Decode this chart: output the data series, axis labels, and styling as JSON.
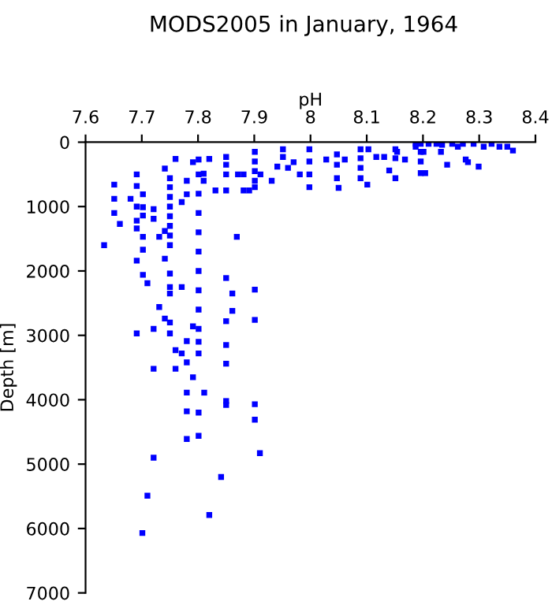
{
  "chart_data": {
    "type": "scatter",
    "title": "MODS2005 in January, 1964",
    "xlabel": "pH",
    "ylabel": "Depth [m]",
    "xlim": [
      7.6,
      8.4
    ],
    "xticks": [
      7.6,
      7.7,
      7.8,
      7.9,
      8,
      8.1,
      8.2,
      8.3,
      8.4
    ],
    "ylim": [
      7000,
      0
    ],
    "yticks": [
      0,
      1000,
      2000,
      3000,
      4000,
      5000,
      6000,
      7000
    ],
    "grid": false,
    "marker": "square",
    "series": [
      {
        "color": "#0000ff",
        "x": [
          7.633,
          7.651,
          7.651,
          7.651,
          7.661,
          7.68,
          7.691,
          7.691,
          7.691,
          7.691,
          7.691,
          7.691,
          7.691,
          7.702,
          7.702,
          7.702,
          7.702,
          7.702,
          7.702,
          7.71,
          7.721,
          7.721,
          7.721,
          7.721,
          7.731,
          7.731,
          7.741,
          7.741,
          7.741,
          7.741,
          7.75,
          7.75,
          7.75,
          7.75,
          7.75,
          7.75,
          7.75,
          7.75,
          7.75,
          7.75,
          7.75,
          7.75,
          7.75,
          7.76,
          7.76,
          7.76,
          7.771,
          7.771,
          7.771,
          7.78,
          7.78,
          7.78,
          7.78,
          7.791,
          7.791,
          7.791,
          7.801,
          7.801,
          7.801,
          7.801,
          7.801,
          7.801,
          7.801,
          7.801,
          7.801,
          7.801,
          7.801,
          7.801,
          7.81,
          7.81,
          7.82,
          7.831,
          7.85,
          7.85,
          7.85,
          7.85,
          7.85,
          7.85,
          7.85,
          7.85,
          7.861,
          7.861,
          7.869,
          7.871,
          7.881,
          7.881,
          7.891,
          7.901,
          7.901,
          7.901,
          7.901,
          7.901,
          7.901,
          7.901,
          7.911,
          7.931,
          7.941,
          7.951,
          7.951,
          7.96,
          7.97,
          7.981,
          7.998,
          7.998,
          7.998,
          7.998,
          7.78,
          7.811,
          7.85,
          7.85,
          7.901,
          7.901,
          7.78,
          7.801,
          7.78,
          7.801,
          7.91,
          7.721,
          7.841,
          7.71,
          7.82,
          7.701,
          8.028,
          8.047,
          8.047,
          8.047,
          8.05,
          8.061,
          8.089,
          8.089,
          8.089,
          8.089,
          8.101,
          8.103,
          8.117,
          8.131,
          8.14,
          8.151,
          8.151,
          8.151,
          8.168,
          8.187,
          8.187,
          8.196,
          8.196,
          8.196,
          8.196,
          8.204,
          8.21,
          8.224,
          8.232,
          8.243,
          8.252,
          8.262,
          8.271,
          8.276,
          8.28,
          8.299,
          8.29,
          8.308,
          8.322,
          8.336,
          8.35,
          8.36,
          8.234,
          8.201,
          8.154
        ],
        "values": [
          1600,
          660,
          880,
          1100,
          1270,
          880,
          500,
          680,
          1000,
          1220,
          1340,
          1840,
          2970,
          810,
          1010,
          1140,
          1470,
          1670,
          2060,
          2190,
          1040,
          1190,
          2900,
          3520,
          1470,
          2560,
          410,
          1380,
          1810,
          2740,
          560,
          700,
          850,
          1000,
          1150,
          1300,
          1450,
          1600,
          2040,
          2250,
          2350,
          2800,
          2970,
          260,
          3230,
          3520,
          930,
          2250,
          3280,
          600,
          810,
          3090,
          3420,
          310,
          2860,
          3650,
          270,
          500,
          800,
          1100,
          1400,
          1700,
          2000,
          2300,
          2600,
          2900,
          3100,
          3280,
          490,
          600,
          260,
          750,
          230,
          350,
          500,
          750,
          2110,
          2780,
          3150,
          3440,
          2350,
          2620,
          1470,
          500,
          500,
          750,
          750,
          150,
          300,
          450,
          600,
          700,
          2290,
          2760,
          500,
          600,
          380,
          110,
          230,
          400,
          310,
          500,
          110,
          300,
          500,
          700,
          3890,
          3890,
          4020,
          4080,
          4070,
          4310,
          4180,
          4200,
          4610,
          4560,
          4830,
          4900,
          5200,
          5490,
          5790,
          6070,
          270,
          190,
          350,
          560,
          710,
          270,
          110,
          250,
          400,
          560,
          660,
          110,
          230,
          230,
          440,
          110,
          250,
          560,
          270,
          25,
          70,
          25,
          150,
          300,
          480,
          480,
          25,
          25,
          150,
          350,
          25,
          70,
          25,
          270,
          310,
          380,
          25,
          70,
          25,
          70,
          70,
          130,
          40,
          150,
          150
        ]
      }
    ]
  }
}
